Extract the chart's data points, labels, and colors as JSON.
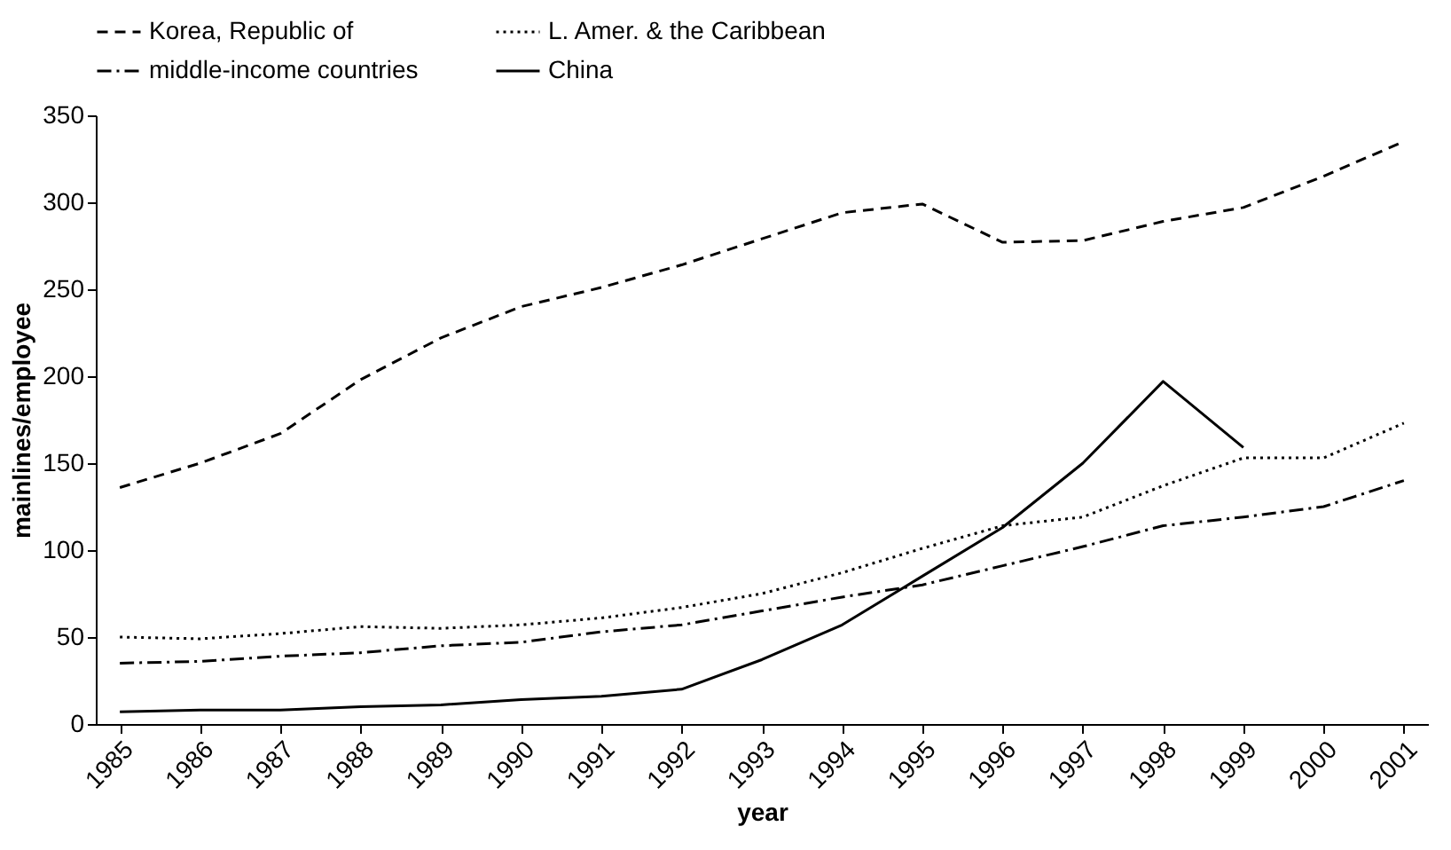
{
  "chart_data": {
    "type": "line",
    "xlabel": "year",
    "ylabel": "mainlines/employee",
    "categories": [
      "1985",
      "1986",
      "1987",
      "1988",
      "1989",
      "1990",
      "1991",
      "1992",
      "1993",
      "1994",
      "1995",
      "1996",
      "1997",
      "1998",
      "1999",
      "2000",
      "2001"
    ],
    "series": [
      {
        "name": "Korea, Republic of",
        "color": "#000000",
        "line_style": "dashed",
        "values": [
          136,
          150,
          167,
          198,
          222,
          240,
          251,
          264,
          279,
          294,
          299,
          277,
          278,
          289,
          297,
          315,
          335
        ]
      },
      {
        "name": "L. Amer. & the Caribbean",
        "color": "#000000",
        "line_style": "dotted",
        "values": [
          50,
          49,
          52,
          56,
          55,
          57,
          61,
          67,
          75,
          87,
          101,
          114,
          119,
          137,
          153,
          153,
          173
        ]
      },
      {
        "name": "middle-income countries",
        "color": "#000000",
        "line_style": "dashdot",
        "values": [
          35,
          36,
          39,
          41,
          45,
          47,
          53,
          57,
          65,
          73,
          80,
          91,
          102,
          114,
          119,
          125,
          140
        ]
      },
      {
        "name": "China",
        "color": "#000000",
        "line_style": "solid",
        "values": [
          7,
          8,
          8,
          10,
          11,
          14,
          16,
          20,
          37,
          57,
          85,
          113,
          150,
          197,
          159,
          null,
          null
        ]
      }
    ],
    "ylim": [
      0,
      350
    ],
    "yticks": [
      0,
      50,
      100,
      150,
      200,
      250,
      300,
      350
    ],
    "grid": false,
    "legend": "top",
    "marker": "none"
  }
}
